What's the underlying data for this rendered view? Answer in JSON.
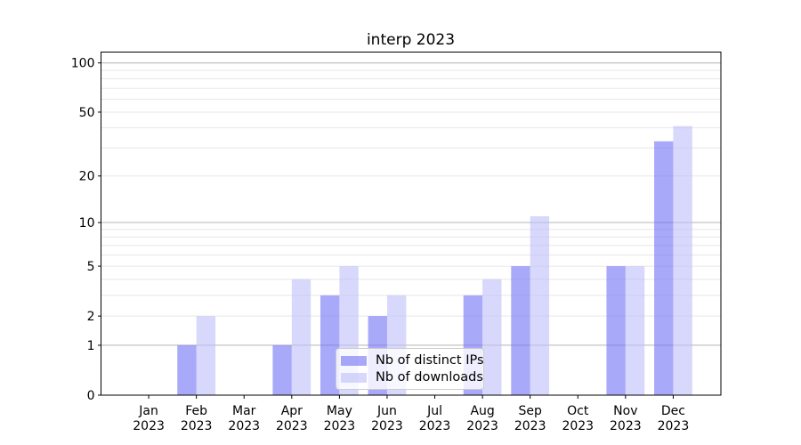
{
  "chart_data": {
    "type": "bar",
    "title": "interp 2023",
    "categories": [
      "Jan",
      "Feb",
      "Mar",
      "Apr",
      "May",
      "Jun",
      "Jul",
      "Aug",
      "Sep",
      "Oct",
      "Nov",
      "Dec"
    ],
    "x_sublabel": "2023",
    "series": [
      {
        "name": "Nb of distinct IPs",
        "fill": "rgba(112,112,245,0.6)",
        "apparent_hex": "#a9a9f8",
        "values": [
          0,
          1,
          0,
          1,
          3,
          2,
          0,
          3,
          5,
          0,
          5,
          33
        ]
      },
      {
        "name": "Nb of downloads",
        "fill": "rgba(190,190,250,0.6)",
        "apparent_hex": "#d9d9f8",
        "values": [
          0,
          2,
          0,
          4,
          5,
          3,
          0,
          4,
          11,
          0,
          5,
          41
        ]
      }
    ],
    "yscale": "log1p",
    "ylim": [
      0,
      116
    ],
    "xlabel": "",
    "ylabel": "",
    "y_tick_labels": [
      0,
      1,
      2,
      5,
      10,
      20,
      50,
      100
    ],
    "y_major_gridlines": [
      1,
      10,
      100
    ],
    "y_minor_gridlines": [
      2,
      3,
      4,
      5,
      6,
      7,
      8,
      9,
      20,
      30,
      40,
      50,
      60,
      70,
      80,
      90
    ],
    "grid": true,
    "legend_position": "lower center"
  },
  "colors": {
    "background": "#ffffff",
    "spine": "#000000",
    "major_grid": "#b4b4b4",
    "minor_grid": "#e7e7e7",
    "tick_text": "#000000",
    "legend_border": "#cccccc"
  }
}
